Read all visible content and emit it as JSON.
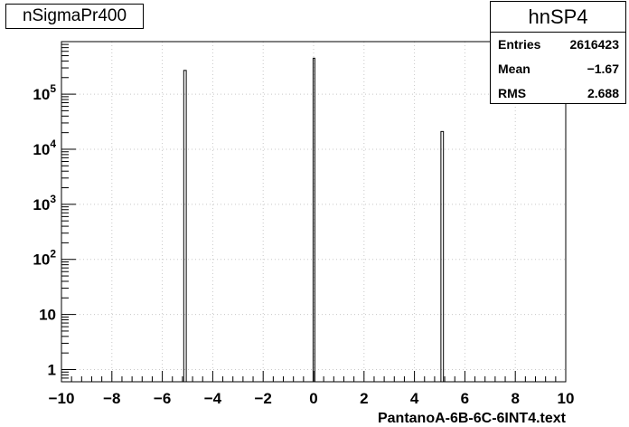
{
  "chart_data": {
    "type": "bar",
    "title": "nSigmaPr400",
    "xlabel": "PantanoA-6B-6C-6INT4.text",
    "ylabel": "",
    "xlim": [
      -10,
      10
    ],
    "ylim": [
      0.6,
      900000
    ],
    "yscale": "log",
    "grid": true,
    "x_ticks": [
      "−10",
      "−8",
      "−6",
      "−4",
      "−2",
      "0",
      "2",
      "4",
      "6",
      "8",
      "10"
    ],
    "y_ticks": [
      {
        "base": "1",
        "exp": ""
      },
      {
        "base": "10",
        "exp": ""
      },
      {
        "base": "10",
        "exp": "2"
      },
      {
        "base": "10",
        "exp": "3"
      },
      {
        "base": "10",
        "exp": "4"
      },
      {
        "base": "10",
        "exp": "5"
      }
    ],
    "bins": [
      {
        "x0": -5.15,
        "x1": -5.05,
        "value": 270000
      },
      {
        "x0": -0.02,
        "x1": 0.05,
        "value": 450000
      },
      {
        "x0": 5.05,
        "x1": 5.15,
        "value": 21000
      }
    ],
    "stats": {
      "name": "hnSP4",
      "rows": [
        {
          "label": "Entries",
          "value": "2616423"
        },
        {
          "label": "Mean",
          "value": "−1.67"
        },
        {
          "label": "RMS",
          "value": "2.688"
        }
      ]
    }
  }
}
